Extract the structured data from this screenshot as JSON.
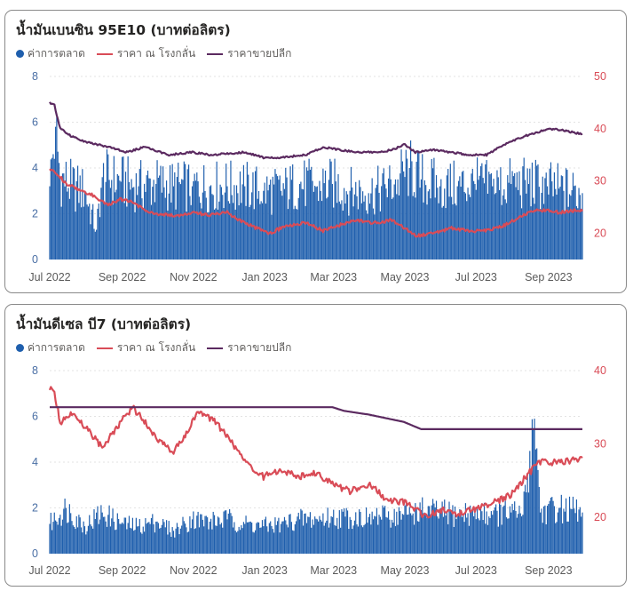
{
  "colors": {
    "market": "#1f5fad",
    "refinery": "#d94c57",
    "retail": "#5b2a60",
    "left_axis": "#4a6fa5",
    "right_axis": "#d94c57",
    "grid": "#e3e3e3",
    "x_tick": "#5a5a5a"
  },
  "legend": {
    "market": "ค่าการตลาด",
    "refinery": "ราคา ณ โรงกลั่น",
    "retail": "ราคาขายปลีก"
  },
  "panels": [
    {
      "title": "น้ำมันเบนซิน 95E10 (บาทต่อลิตร)"
    },
    {
      "title": "น้ำมันดีเซล บี7 (บาทต่อลิตร)"
    }
  ],
  "chart_data": [
    {
      "type": "bar+line",
      "title": "น้ำมันเบนซิน 95E10 (บาทต่อลิตร)",
      "x_ticks": [
        "Jul 2022",
        "Sep 2022",
        "Nov 2022",
        "Jan 2023",
        "Mar 2023",
        "May 2023",
        "Jul 2023",
        "Sep 2023"
      ],
      "x_tick_dates": [
        "2022-07-01",
        "2022-09-01",
        "2022-11-01",
        "2023-01-01",
        "2023-03-01",
        "2023-05-01",
        "2023-07-01",
        "2023-09-01"
      ],
      "x_range": [
        "2022-07-01",
        "2023-09-30"
      ],
      "left_axis": {
        "ylim": [
          0,
          8
        ],
        "ticks": [
          "0",
          "2",
          "4",
          "6",
          "8"
        ]
      },
      "right_axis": {
        "ylim": [
          15,
          50
        ],
        "ticks": [
          "20",
          "30",
          "40",
          "50"
        ]
      },
      "grid": true,
      "legend_position": "top-left",
      "series": [
        {
          "name": "ค่าการตลาด",
          "type": "bar",
          "axis": "left",
          "points": [
            [
              "2022-07-01",
              3.2
            ],
            [
              "2022-07-06",
              5.8
            ],
            [
              "2022-07-10",
              3.6
            ],
            [
              "2022-07-20",
              3.2
            ],
            [
              "2022-07-31",
              3.0
            ],
            [
              "2022-08-10",
              1.3
            ],
            [
              "2022-08-15",
              3.6
            ],
            [
              "2022-08-31",
              3.4
            ],
            [
              "2022-09-15",
              3.2
            ],
            [
              "2022-09-30",
              3.3
            ],
            [
              "2022-10-15",
              3.2
            ],
            [
              "2022-10-31",
              3.2
            ],
            [
              "2022-11-15",
              3.2
            ],
            [
              "2022-11-30",
              3.2
            ],
            [
              "2022-12-15",
              3.2
            ],
            [
              "2022-12-31",
              3.0
            ],
            [
              "2023-01-15",
              3.0
            ],
            [
              "2023-01-31",
              3.3
            ],
            [
              "2023-02-15",
              3.2
            ],
            [
              "2023-02-28",
              3.3
            ],
            [
              "2023-03-15",
              3.0
            ],
            [
              "2023-03-31",
              2.9
            ],
            [
              "2023-04-15",
              3.1
            ],
            [
              "2023-04-25",
              3.5
            ],
            [
              "2023-05-05",
              4.0
            ],
            [
              "2023-05-15",
              3.5
            ],
            [
              "2023-05-31",
              3.2
            ],
            [
              "2023-06-15",
              3.2
            ],
            [
              "2023-06-30",
              3.3
            ],
            [
              "2023-07-15",
              3.2
            ],
            [
              "2023-07-31",
              3.3
            ],
            [
              "2023-08-15",
              3.3
            ],
            [
              "2023-08-31",
              3.2
            ],
            [
              "2023-09-10",
              3.1
            ],
            [
              "2023-09-30",
              2.9
            ]
          ]
        },
        {
          "name": "ราคา ณ โรงกลั่น",
          "type": "line",
          "axis": "right",
          "points": [
            [
              "2022-07-01",
              32.5
            ],
            [
              "2022-07-07",
              31.5
            ],
            [
              "2022-07-15",
              29.5
            ],
            [
              "2022-07-25",
              28.5
            ],
            [
              "2022-08-05",
              27.5
            ],
            [
              "2022-08-20",
              25.5
            ],
            [
              "2022-08-31",
              26.5
            ],
            [
              "2022-09-10",
              26.0
            ],
            [
              "2022-09-20",
              24.5
            ],
            [
              "2022-10-05",
              23.5
            ],
            [
              "2022-10-20",
              23.5
            ],
            [
              "2022-11-01",
              24.0
            ],
            [
              "2022-11-15",
              23.5
            ],
            [
              "2022-11-30",
              24.0
            ],
            [
              "2022-12-10",
              22.5
            ],
            [
              "2022-12-25",
              21.0
            ],
            [
              "2023-01-05",
              20.0
            ],
            [
              "2023-01-20",
              21.5
            ],
            [
              "2023-02-05",
              22.0
            ],
            [
              "2023-02-20",
              20.5
            ],
            [
              "2023-03-05",
              21.5
            ],
            [
              "2023-03-20",
              22.5
            ],
            [
              "2023-04-05",
              22.0
            ],
            [
              "2023-04-20",
              22.5
            ],
            [
              "2023-05-01",
              21.0
            ],
            [
              "2023-05-10",
              19.5
            ],
            [
              "2023-05-25",
              20.0
            ],
            [
              "2023-06-10",
              21.0
            ],
            [
              "2023-06-25",
              20.5
            ],
            [
              "2023-07-10",
              20.5
            ],
            [
              "2023-07-25",
              21.5
            ],
            [
              "2023-08-10",
              23.5
            ],
            [
              "2023-08-25",
              24.5
            ],
            [
              "2023-09-10",
              24.0
            ],
            [
              "2023-09-30",
              24.5
            ]
          ]
        },
        {
          "name": "ราคาขายปลีก",
          "type": "line",
          "axis": "right",
          "points": [
            [
              "2022-07-01",
              45.0
            ],
            [
              "2022-07-05",
              44.5
            ],
            [
              "2022-07-10",
              40.0
            ],
            [
              "2022-07-20",
              38.5
            ],
            [
              "2022-08-01",
              37.5
            ],
            [
              "2022-08-20",
              36.5
            ],
            [
              "2022-09-05",
              35.5
            ],
            [
              "2022-09-20",
              36.5
            ],
            [
              "2022-10-10",
              35.0
            ],
            [
              "2022-10-31",
              35.5
            ],
            [
              "2022-11-15",
              35.0
            ],
            [
              "2022-12-15",
              35.5
            ],
            [
              "2022-12-31",
              34.5
            ],
            [
              "2023-01-15",
              34.5
            ],
            [
              "2023-02-05",
              35.0
            ],
            [
              "2023-02-20",
              36.5
            ],
            [
              "2023-03-05",
              36.0
            ],
            [
              "2023-03-20",
              35.5
            ],
            [
              "2023-04-10",
              35.5
            ],
            [
              "2023-04-20",
              36.0
            ],
            [
              "2023-05-01",
              37.0
            ],
            [
              "2023-05-10",
              35.5
            ],
            [
              "2023-05-25",
              36.0
            ],
            [
              "2023-06-10",
              35.5
            ],
            [
              "2023-06-25",
              35.0
            ],
            [
              "2023-07-10",
              35.0
            ],
            [
              "2023-07-25",
              37.0
            ],
            [
              "2023-08-10",
              38.5
            ],
            [
              "2023-08-25",
              39.5
            ],
            [
              "2023-09-05",
              40.0
            ],
            [
              "2023-09-30",
              39.0
            ]
          ]
        }
      ]
    },
    {
      "type": "bar+line",
      "title": "น้ำมันดีเซล บี7 (บาทต่อลิตร)",
      "x_ticks": [
        "Jul 2022",
        "Sep 2022",
        "Nov 2022",
        "Jan 2023",
        "Mar 2023",
        "May 2023",
        "Jul 2023",
        "Sep 2023"
      ],
      "x_tick_dates": [
        "2022-07-01",
        "2022-09-01",
        "2022-11-01",
        "2023-01-01",
        "2023-03-01",
        "2023-05-01",
        "2023-07-01",
        "2023-09-01"
      ],
      "x_range": [
        "2022-07-01",
        "2023-09-30"
      ],
      "left_axis": {
        "ylim": [
          0,
          8
        ],
        "ticks": [
          "0",
          "2",
          "4",
          "6",
          "8"
        ]
      },
      "right_axis": {
        "ylim": [
          15,
          40
        ],
        "ticks": [
          "20",
          "30",
          "40"
        ]
      },
      "grid": true,
      "legend_position": "top-left",
      "series": [
        {
          "name": "ค่าการตลาด",
          "type": "bar",
          "axis": "left",
          "points": [
            [
              "2022-07-01",
              1.3
            ],
            [
              "2022-07-15",
              2.0
            ],
            [
              "2022-07-31",
              1.2
            ],
            [
              "2022-08-15",
              1.8
            ],
            [
              "2022-08-31",
              1.3
            ],
            [
              "2022-09-15",
              1.2
            ],
            [
              "2022-09-30",
              1.4
            ],
            [
              "2022-10-15",
              1.0
            ],
            [
              "2022-10-31",
              1.5
            ],
            [
              "2022-11-15",
              1.4
            ],
            [
              "2022-11-30",
              1.5
            ],
            [
              "2022-12-15",
              1.3
            ],
            [
              "2022-12-31",
              1.2
            ],
            [
              "2023-01-15",
              1.3
            ],
            [
              "2023-01-31",
              1.5
            ],
            [
              "2023-02-15",
              1.5
            ],
            [
              "2023-02-28",
              1.6
            ],
            [
              "2023-03-15",
              1.6
            ],
            [
              "2023-03-31",
              1.6
            ],
            [
              "2023-04-15",
              1.6
            ],
            [
              "2023-04-30",
              1.7
            ],
            [
              "2023-05-15",
              1.9
            ],
            [
              "2023-05-31",
              1.8
            ],
            [
              "2023-06-15",
              1.7
            ],
            [
              "2023-06-30",
              1.8
            ],
            [
              "2023-07-15",
              1.7
            ],
            [
              "2023-07-31",
              1.8
            ],
            [
              "2023-08-10",
              1.7
            ],
            [
              "2023-08-20",
              5.9
            ],
            [
              "2023-08-25",
              1.8
            ],
            [
              "2023-09-10",
              2.0
            ],
            [
              "2023-09-30",
              1.8
            ]
          ]
        },
        {
          "name": "ราคา ณ โรงกลั่น",
          "type": "line",
          "axis": "right",
          "points": [
            [
              "2022-07-01",
              37.5
            ],
            [
              "2022-07-05",
              37.0
            ],
            [
              "2022-07-10",
              33.0
            ],
            [
              "2022-07-20",
              34.0
            ],
            [
              "2022-08-05",
              31.5
            ],
            [
              "2022-08-15",
              29.5
            ],
            [
              "2022-08-31",
              33.0
            ],
            [
              "2022-09-10",
              35.0
            ],
            [
              "2022-09-20",
              33.0
            ],
            [
              "2022-10-05",
              30.0
            ],
            [
              "2022-10-15",
              29.0
            ],
            [
              "2022-10-25",
              31.0
            ],
            [
              "2022-11-05",
              34.5
            ],
            [
              "2022-11-20",
              33.0
            ],
            [
              "2022-12-05",
              30.0
            ],
            [
              "2022-12-15",
              27.5
            ],
            [
              "2022-12-31",
              25.5
            ],
            [
              "2023-01-15",
              26.5
            ],
            [
              "2023-01-31",
              25.5
            ],
            [
              "2023-02-15",
              26.0
            ],
            [
              "2023-02-28",
              24.5
            ],
            [
              "2023-03-15",
              23.5
            ],
            [
              "2023-03-31",
              24.5
            ],
            [
              "2023-04-15",
              22.5
            ],
            [
              "2023-04-30",
              22.0
            ],
            [
              "2023-05-10",
              21.0
            ],
            [
              "2023-05-20",
              20.0
            ],
            [
              "2023-05-31",
              21.0
            ],
            [
              "2023-06-15",
              20.5
            ],
            [
              "2023-06-30",
              21.0
            ],
            [
              "2023-07-15",
              22.0
            ],
            [
              "2023-07-31",
              23.0
            ],
            [
              "2023-08-15",
              26.0
            ],
            [
              "2023-08-25",
              27.5
            ],
            [
              "2023-09-10",
              27.5
            ],
            [
              "2023-09-30",
              28.0
            ]
          ]
        },
        {
          "name": "ราคาขายปลีก",
          "type": "line",
          "axis": "right",
          "points": [
            [
              "2022-07-01",
              35.0
            ],
            [
              "2023-02-28",
              35.0
            ],
            [
              "2023-03-10",
              34.5
            ],
            [
              "2023-03-31",
              34.0
            ],
            [
              "2023-04-15",
              33.5
            ],
            [
              "2023-04-30",
              33.0
            ],
            [
              "2023-05-15",
              32.0
            ],
            [
              "2023-09-30",
              32.0
            ]
          ]
        }
      ]
    }
  ]
}
